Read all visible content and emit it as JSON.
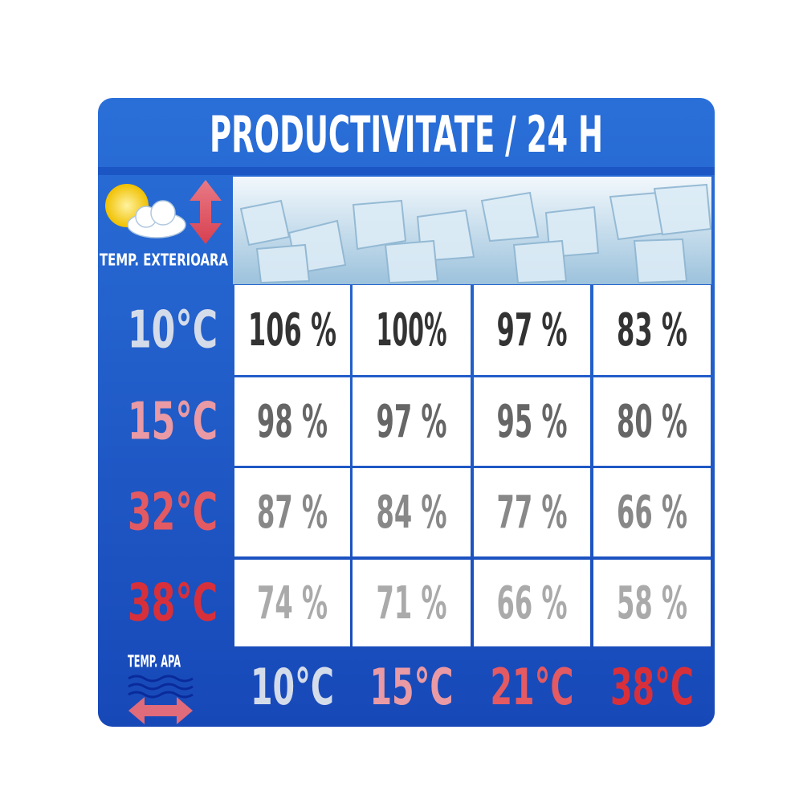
{
  "header": {
    "title": "PRODUCTIVITATE / 24 H"
  },
  "row_axis_label": "TEMP. EXTERIOARA",
  "column_axis_label": "TEMP. APA",
  "table": {
    "row_headers": [
      "10°C",
      "15°C",
      "32°C",
      "38°C"
    ],
    "column_headers": [
      "10°C",
      "15°C",
      "21°C",
      "38°C"
    ],
    "rows": [
      [
        "106 %",
        "100%",
        "97 %",
        "83 %"
      ],
      [
        "98 %",
        "97 %",
        "95 %",
        "80 %"
      ],
      [
        "87 %",
        "84 %",
        "77 %",
        "66 %"
      ],
      [
        "74 %",
        "71 %",
        "66 %",
        "58 %"
      ]
    ]
  }
}
